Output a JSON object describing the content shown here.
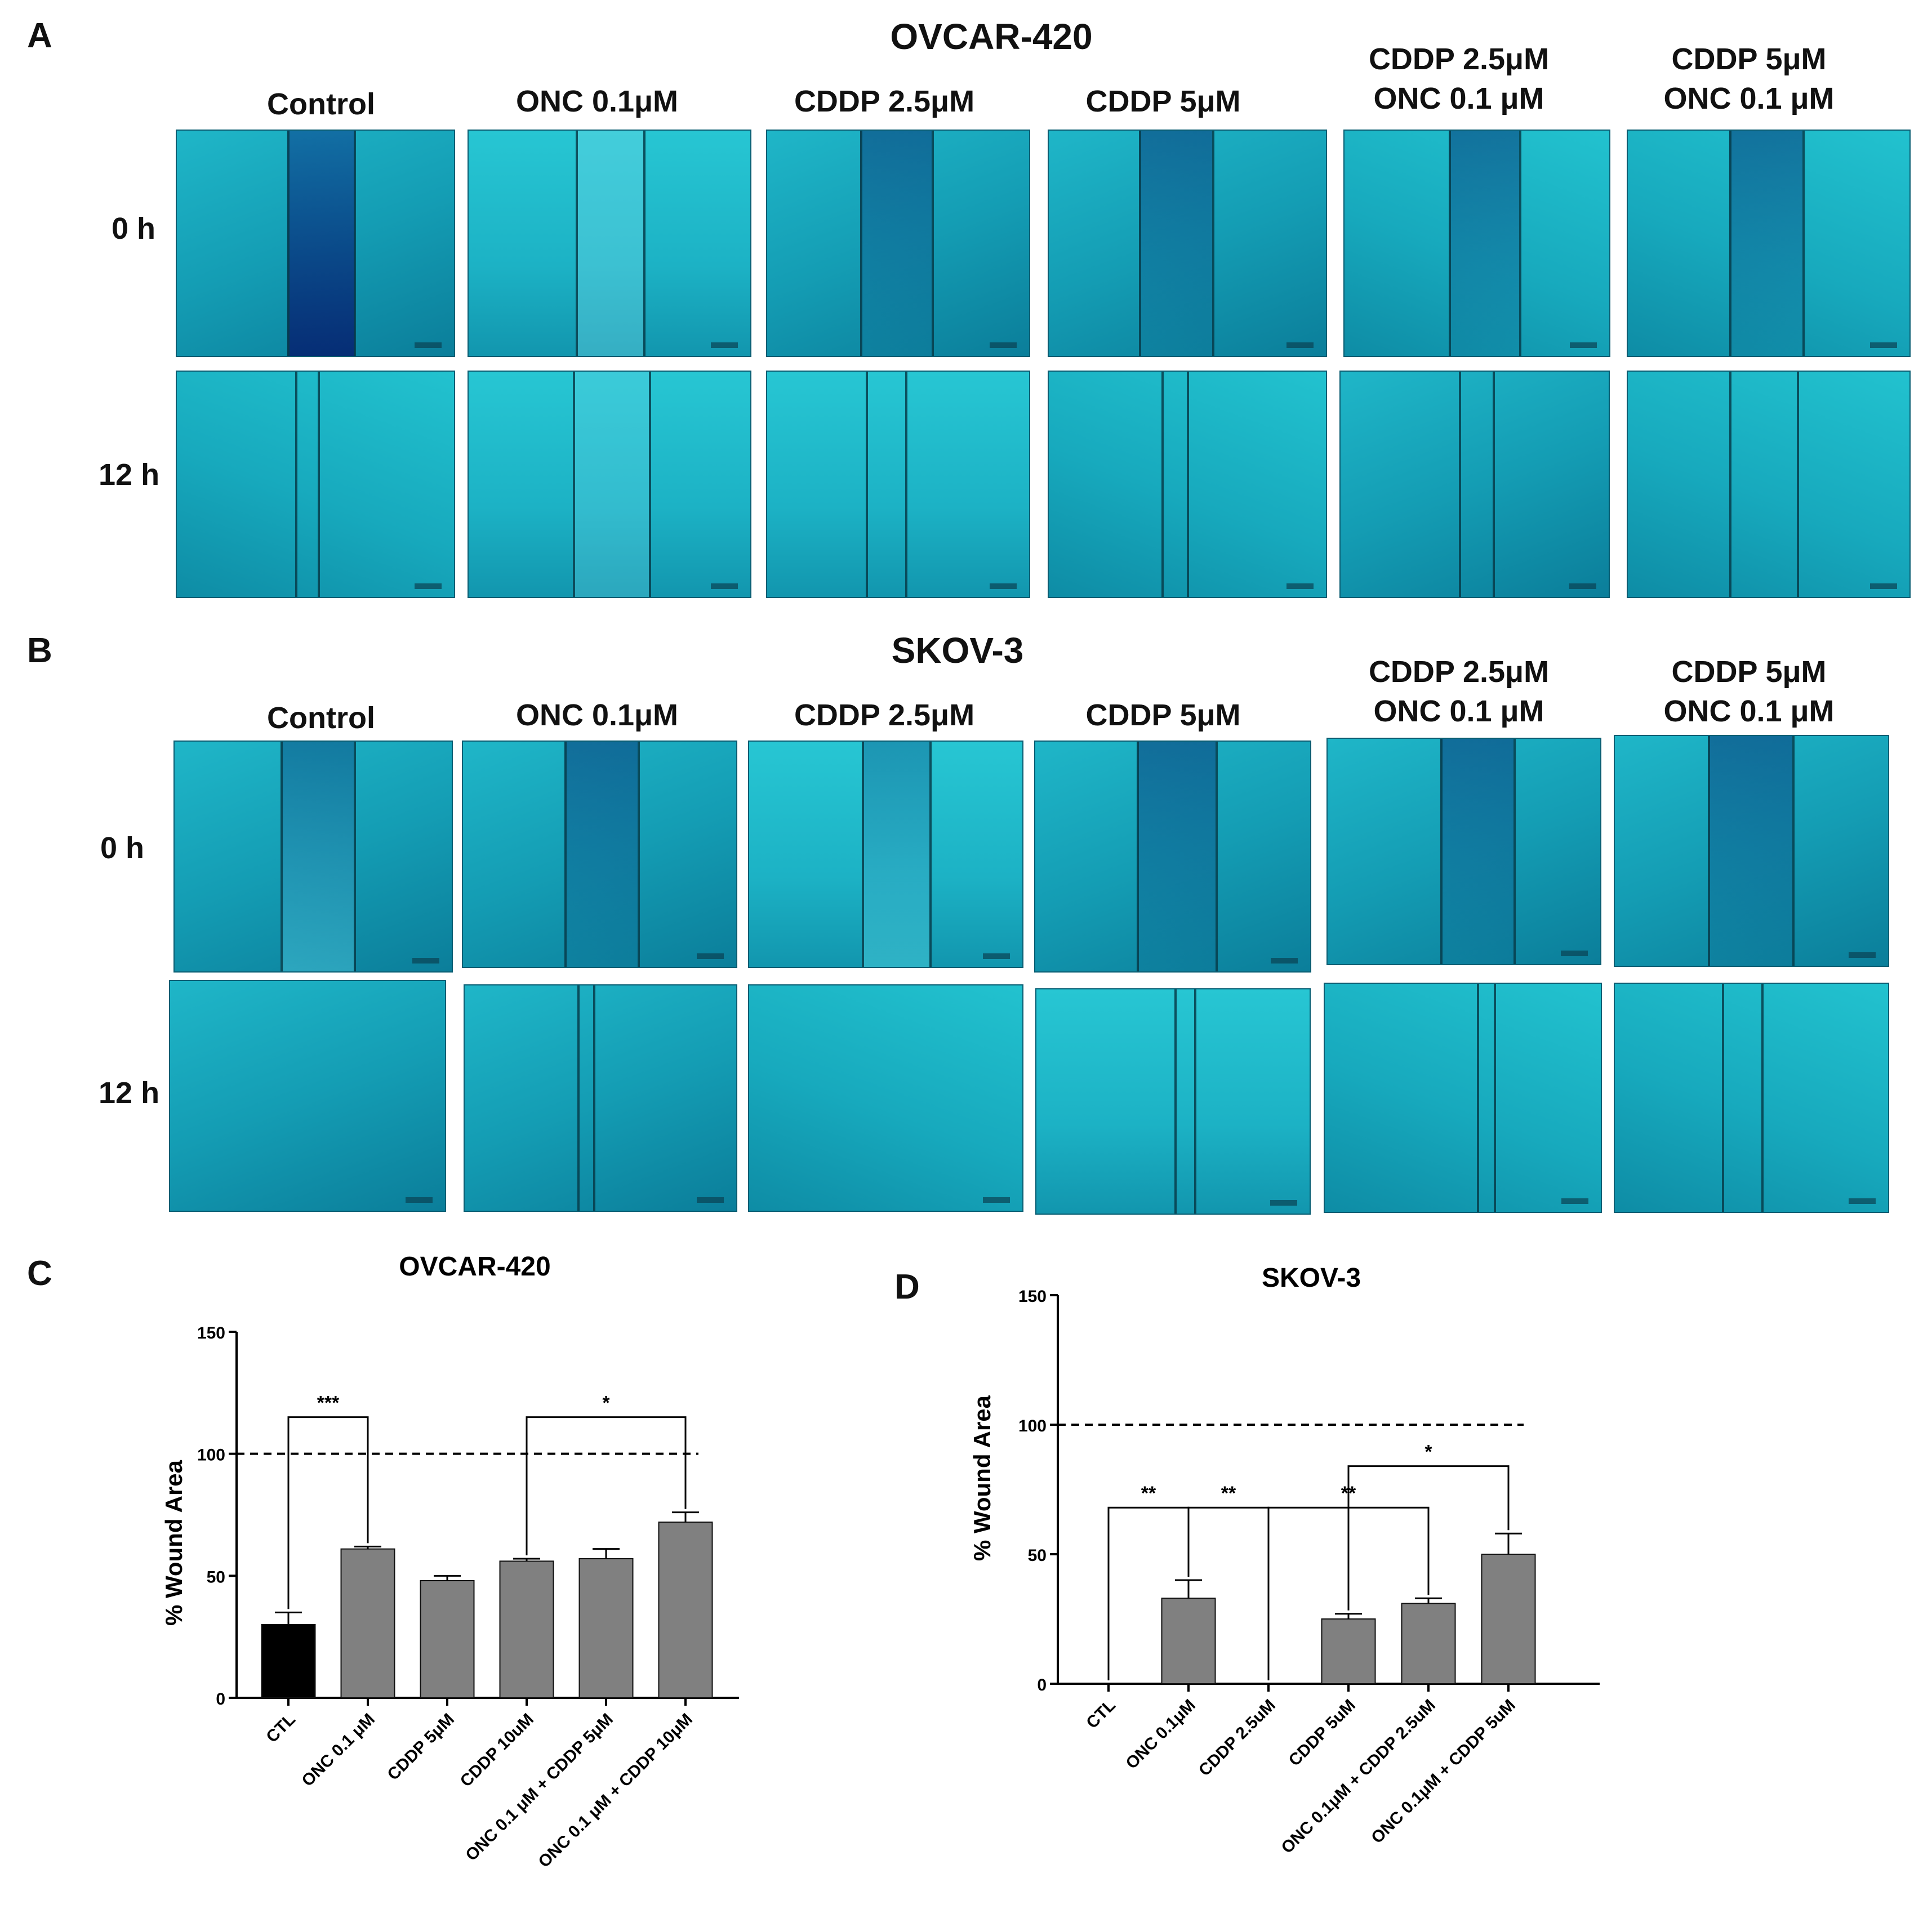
{
  "panels": {
    "a": {
      "letter": "A",
      "title": "OVCAR-420",
      "columns": [
        "Control",
        "ONC 0.1μM",
        "CDDP 2.5μM",
        "CDDP 5μM",
        "CDDP 2.5μM\nONC 0.1 μM",
        "CDDP 5μM\nONC 0.1 μM"
      ],
      "rows": [
        "0 h",
        "12 h"
      ]
    },
    "b": {
      "letter": "B",
      "title": "SKOV-3",
      "columns": [
        "Control",
        "ONC 0.1μM",
        "CDDP 2.5μM",
        "CDDP 5μM",
        "CDDP 2.5μM\nONC 0.1 μM",
        "CDDP 5μM\nONC 0.1 μM"
      ],
      "rows": [
        "0 h",
        "12 h"
      ]
    },
    "c": {
      "letter": "C"
    },
    "d": {
      "letter": "D"
    }
  },
  "chart_data": [
    {
      "type": "bar",
      "title": "OVCAR-420",
      "ylabel": "% Wound Area",
      "ylim": [
        0,
        150
      ],
      "yticks": [
        "0",
        "50",
        "100",
        "150"
      ],
      "categories": [
        "CTL",
        "ONC 0.1 μM",
        "CDDP 5μM",
        "CDDP 10uM",
        "ONC 0.1 μM + CDDP 5μM",
        "ONC 0.1 μM + CDDP 10μM"
      ],
      "values": [
        30,
        61,
        48,
        56,
        57,
        72
      ],
      "errors": [
        5,
        1,
        2,
        1,
        4,
        4
      ],
      "bar_colors": [
        "#000000",
        "#808080",
        "#808080",
        "#808080",
        "#808080",
        "#808080"
      ],
      "reference_line": 100,
      "significance": [
        {
          "from": 0,
          "to": 1,
          "label": "***",
          "y": 115
        },
        {
          "from": 3,
          "to": 5,
          "label": "*",
          "y": 115
        }
      ]
    },
    {
      "type": "bar",
      "title": "SKOV-3",
      "ylabel": "% Wound Area",
      "ylim": [
        0,
        150
      ],
      "yticks": [
        "0",
        "50",
        "100",
        "150"
      ],
      "categories": [
        "CTL",
        "ONC 0.1μM",
        "CDDP 2.5uM",
        "CDDP 5uM",
        "ONC 0.1μM + CDDP 2.5uM",
        "ONC 0.1μM + CDDP 5uM"
      ],
      "values": [
        0,
        33,
        0,
        25,
        31,
        50
      ],
      "errors": [
        0,
        7,
        0,
        2,
        2,
        8
      ],
      "bar_colors": [
        "#808080",
        "#808080",
        "#808080",
        "#808080",
        "#808080",
        "#808080"
      ],
      "reference_line": 100,
      "significance": [
        {
          "from": 0,
          "to": 1,
          "label": "**",
          "y": 68
        },
        {
          "from": 1,
          "to": 2,
          "label": "**",
          "y": 68
        },
        {
          "from": 2,
          "to": 4,
          "label": "**",
          "y": 68
        },
        {
          "from": 3,
          "to": 5,
          "label": "*",
          "y": 84
        }
      ]
    }
  ]
}
